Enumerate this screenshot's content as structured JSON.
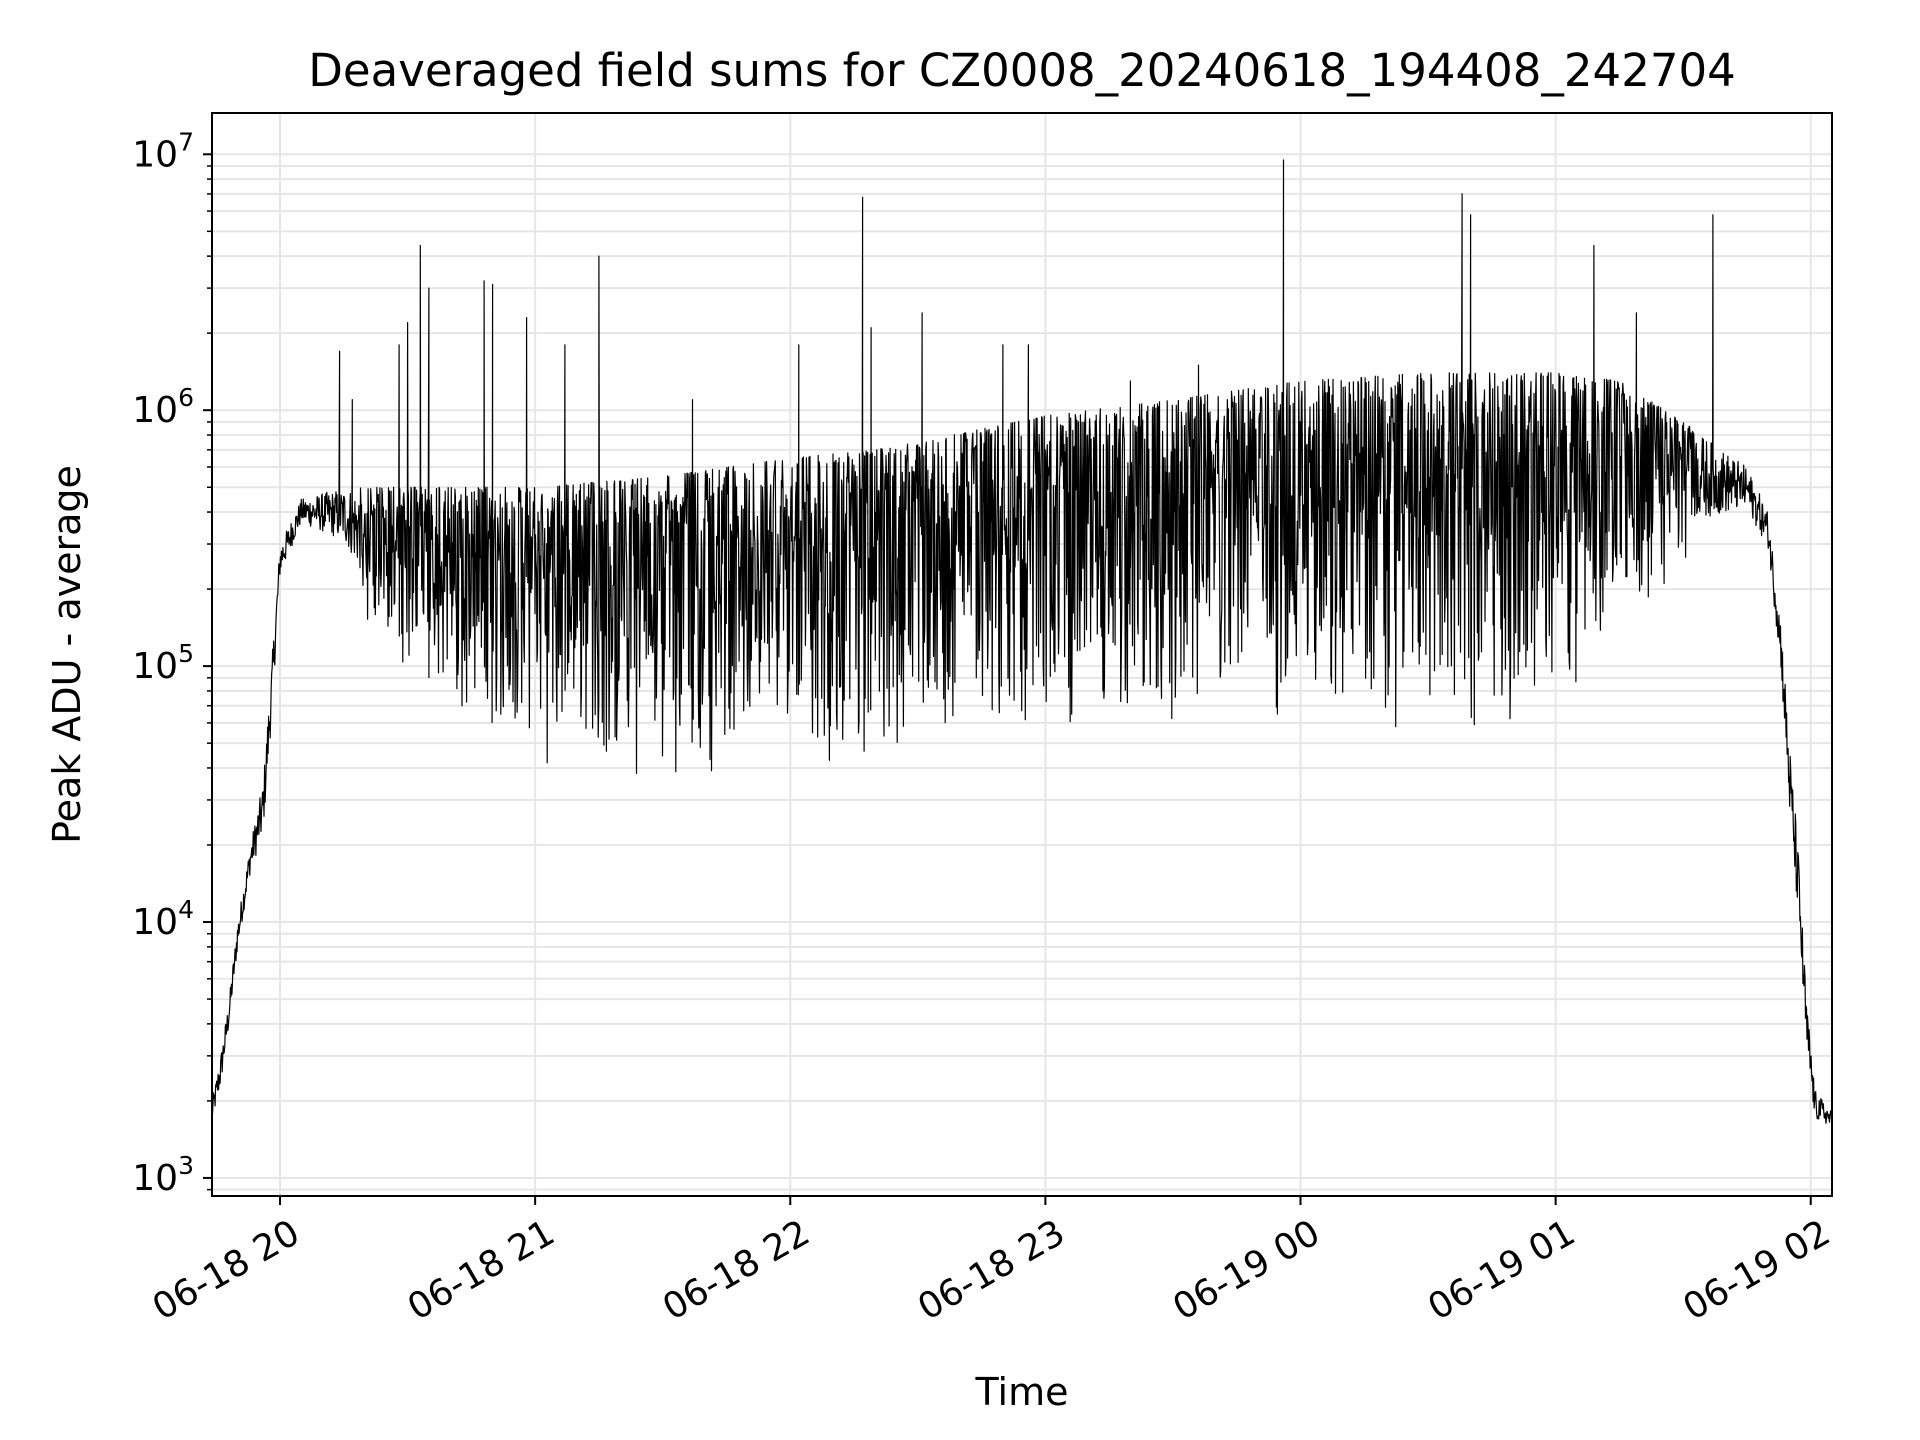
{
  "chart_data": {
    "type": "line",
    "title": "Deaveraged field sums for CZ0008_20240618_194408_242704",
    "xlabel": "Time",
    "ylabel": "Peak ADU - average",
    "yscale": "log",
    "ylim": [
      850,
      14500000
    ],
    "xlim": [
      "2024-06-18 19:44",
      "2024-06-19 02:05"
    ],
    "grid": true,
    "line_color": "#000000",
    "grid_color": "#e6e6e6",
    "x_ticks": [
      {
        "value": "2024-06-18 20:00",
        "label": "06-18 20"
      },
      {
        "value": "2024-06-18 21:00",
        "label": "06-18 21"
      },
      {
        "value": "2024-06-18 22:00",
        "label": "06-18 22"
      },
      {
        "value": "2024-06-18 23:00",
        "label": "06-18 23"
      },
      {
        "value": "2024-06-19 00:00",
        "label": "06-19 00"
      },
      {
        "value": "2024-06-19 01:00",
        "label": "06-19 01"
      },
      {
        "value": "2024-06-19 02:00",
        "label": "06-19 02"
      }
    ],
    "y_ticks": [
      {
        "value": 1000,
        "base": "10",
        "exp": "3"
      },
      {
        "value": 10000,
        "base": "10",
        "exp": "4"
      },
      {
        "value": 100000,
        "base": "10",
        "exp": "5"
      },
      {
        "value": 1000000,
        "base": "10",
        "exp": "6"
      },
      {
        "value": 10000000,
        "base": "10",
        "exp": "7"
      }
    ],
    "envelope": [
      {
        "t": "2024-06-18 19:44",
        "low": 1500,
        "high": 2000
      },
      {
        "t": "2024-06-18 19:46",
        "low": 2000,
        "high": 3000
      },
      {
        "t": "2024-06-18 19:48",
        "low": 3500,
        "high": 5000
      },
      {
        "t": "2024-06-18 19:50",
        "low": 7000,
        "high": 10000
      },
      {
        "t": "2024-06-18 19:53",
        "low": 14000,
        "high": 20000
      },
      {
        "t": "2024-06-18 19:56",
        "low": 18000,
        "high": 35000
      },
      {
        "t": "2024-06-18 19:58",
        "low": 50000,
        "high": 100000
      },
      {
        "t": "2024-06-18 20:00",
        "low": 200000,
        "high": 300000
      },
      {
        "t": "2024-06-18 20:05",
        "low": 330000,
        "high": 450000
      },
      {
        "t": "2024-06-18 20:15",
        "low": 250000,
        "high": 500000
      },
      {
        "t": "2024-06-18 20:20",
        "low": 150000,
        "high": 500000
      },
      {
        "t": "2024-06-18 20:30",
        "low": 90000,
        "high": 500000
      },
      {
        "t": "2024-06-18 20:45",
        "low": 50000,
        "high": 500000
      },
      {
        "t": "2024-06-18 21:00",
        "low": 40000,
        "high": 500000
      },
      {
        "t": "2024-06-18 21:30",
        "low": 35000,
        "high": 550000
      },
      {
        "t": "2024-06-18 22:00",
        "low": 40000,
        "high": 650000
      },
      {
        "t": "2024-06-18 22:20",
        "low": 38000,
        "high": 700000
      },
      {
        "t": "2024-06-18 22:30",
        "low": 35000,
        "high": 750000
      },
      {
        "t": "2024-06-18 23:00",
        "low": 45000,
        "high": 950000
      },
      {
        "t": "2024-06-18 23:30",
        "low": 55000,
        "high": 1100000
      },
      {
        "t": "2024-06-19 00:00",
        "low": 60000,
        "high": 1300000
      },
      {
        "t": "2024-06-19 00:30",
        "low": 50000,
        "high": 1400000
      },
      {
        "t": "2024-06-19 01:00",
        "low": 60000,
        "high": 1400000
      },
      {
        "t": "2024-06-19 01:15",
        "low": 130000,
        "high": 1300000
      },
      {
        "t": "2024-06-19 01:30",
        "low": 250000,
        "high": 900000
      },
      {
        "t": "2024-06-19 01:45",
        "low": 350000,
        "high": 600000
      },
      {
        "t": "2024-06-19 01:50",
        "low": 250000,
        "high": 400000
      },
      {
        "t": "2024-06-19 01:53",
        "low": 80000,
        "high": 150000
      },
      {
        "t": "2024-06-19 01:55",
        "low": 20000,
        "high": 50000
      },
      {
        "t": "2024-06-19 01:57",
        "low": 8000,
        "high": 20000
      },
      {
        "t": "2024-06-19 01:59",
        "low": 2500,
        "high": 5000
      },
      {
        "t": "2024-06-19 02:01",
        "low": 1500,
        "high": 2200
      },
      {
        "t": "2024-06-19 02:05",
        "low": 1500,
        "high": 1800
      }
    ],
    "spikes": [
      {
        "t": "2024-06-18 20:14",
        "value": 1700000
      },
      {
        "t": "2024-06-18 20:17",
        "value": 1100000
      },
      {
        "t": "2024-06-18 20:28",
        "value": 1800000
      },
      {
        "t": "2024-06-18 20:30",
        "value": 2200000
      },
      {
        "t": "2024-06-18 20:33",
        "value": 4400000
      },
      {
        "t": "2024-06-18 20:35",
        "value": 3000000
      },
      {
        "t": "2024-06-18 20:48",
        "value": 3200000
      },
      {
        "t": "2024-06-18 20:50",
        "value": 3100000
      },
      {
        "t": "2024-06-18 20:58",
        "value": 2300000
      },
      {
        "t": "2024-06-18 21:07",
        "value": 1800000
      },
      {
        "t": "2024-06-18 21:15",
        "value": 4000000
      },
      {
        "t": "2024-06-18 21:37",
        "value": 1100000
      },
      {
        "t": "2024-06-18 22:02",
        "value": 1800000
      },
      {
        "t": "2024-06-18 22:17",
        "value": 6800000
      },
      {
        "t": "2024-06-18 22:19",
        "value": 2100000
      },
      {
        "t": "2024-06-18 22:31",
        "value": 2400000
      },
      {
        "t": "2024-06-18 22:50",
        "value": 1800000
      },
      {
        "t": "2024-06-18 22:56",
        "value": 1800000
      },
      {
        "t": "2024-06-18 23:20",
        "value": 1300000
      },
      {
        "t": "2024-06-18 23:36",
        "value": 1500000
      },
      {
        "t": "2024-06-18 23:56",
        "value": 9500000
      },
      {
        "t": "2024-06-19 00:38",
        "value": 7000000
      },
      {
        "t": "2024-06-19 00:40",
        "value": 5800000
      },
      {
        "t": "2024-06-19 01:09",
        "value": 4400000
      },
      {
        "t": "2024-06-19 01:19",
        "value": 2400000
      },
      {
        "t": "2024-06-19 01:37",
        "value": 5800000
      }
    ]
  }
}
